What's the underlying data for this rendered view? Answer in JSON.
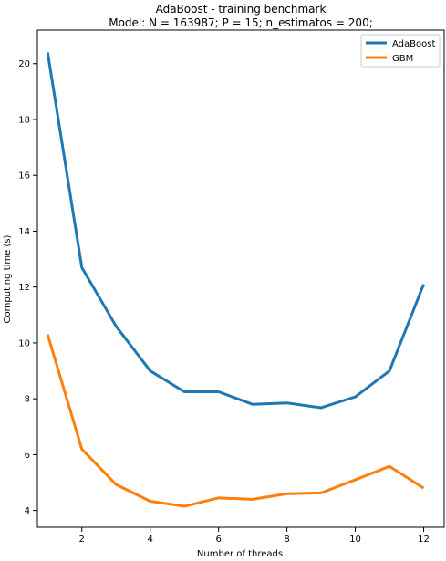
{
  "chart_data": {
    "type": "line",
    "title": "AdaBoost - training benchmark",
    "subtitle": "Model: N = 163987; P = 15; n_estimatos = 200;",
    "xlabel": "Number of threads",
    "ylabel": "Computing time (s)",
    "xlim": [
      0.7,
      12.6
    ],
    "ylim": [
      3.4,
      21.2
    ],
    "xticks": [
      2,
      4,
      6,
      8,
      10,
      12
    ],
    "yticks": [
      4,
      6,
      8,
      10,
      12,
      14,
      16,
      18,
      20
    ],
    "grid": false,
    "legend_position": "top-right",
    "x": [
      1,
      2,
      3,
      4,
      5,
      6,
      7,
      8,
      9,
      10,
      11,
      12
    ],
    "series": [
      {
        "name": "AdaBoost",
        "color": "#1f77b4",
        "values": [
          20.4,
          12.7,
          10.6,
          9.0,
          8.25,
          8.25,
          7.8,
          7.85,
          7.68,
          8.07,
          9.0,
          12.1
        ]
      },
      {
        "name": "GBM",
        "color": "#ff7f0e",
        "values": [
          10.3,
          6.2,
          4.93,
          4.33,
          4.15,
          4.45,
          4.4,
          4.6,
          4.63,
          5.1,
          5.58,
          4.8
        ]
      }
    ]
  }
}
